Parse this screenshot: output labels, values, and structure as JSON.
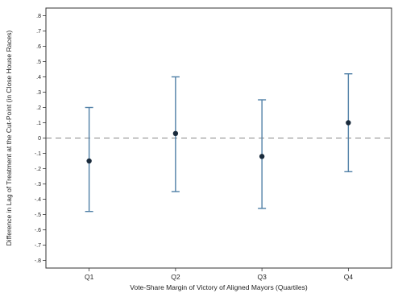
{
  "chart_data": {
    "type": "scatter",
    "subtype": "point-estimates-with-confidence-intervals",
    "title": "",
    "xlabel": "Vote-Share Margin of Victory of Aligned Mayors (Quartiles)",
    "ylabel": "Difference in Lag of Treatment at the Cut-Point (in Close House Races)",
    "categories": [
      "Q1",
      "Q2",
      "Q3",
      "Q4"
    ],
    "estimates": [
      -0.15,
      0.03,
      -0.12,
      0.1
    ],
    "ci_lower": [
      -0.48,
      -0.35,
      -0.46,
      -0.22
    ],
    "ci_upper": [
      0.2,
      0.4,
      0.25,
      0.42
    ],
    "ylim": [
      -0.85,
      0.85
    ],
    "y_ticks": [
      -0.8,
      -0.7,
      -0.6,
      -0.5,
      -0.4,
      -0.3,
      -0.2,
      -0.1,
      0,
      0.1,
      0.2,
      0.3,
      0.4,
      0.5,
      0.6,
      0.7,
      0.8
    ],
    "y_tick_labels": [
      "-.8",
      "-.7",
      "-.6",
      "-.5",
      "-.4",
      "-.3",
      "-.2",
      "-.1",
      "0",
      ".1",
      ".2",
      ".3",
      ".4",
      ".5",
      ".6",
      ".7",
      ".8"
    ],
    "reference_line": {
      "y": 0,
      "style": "dashed",
      "color": "#888888"
    },
    "grid": false,
    "colors": {
      "marker": "#1a2b3c",
      "ci_line": "#4f7fa6",
      "axis": "#333333"
    }
  }
}
